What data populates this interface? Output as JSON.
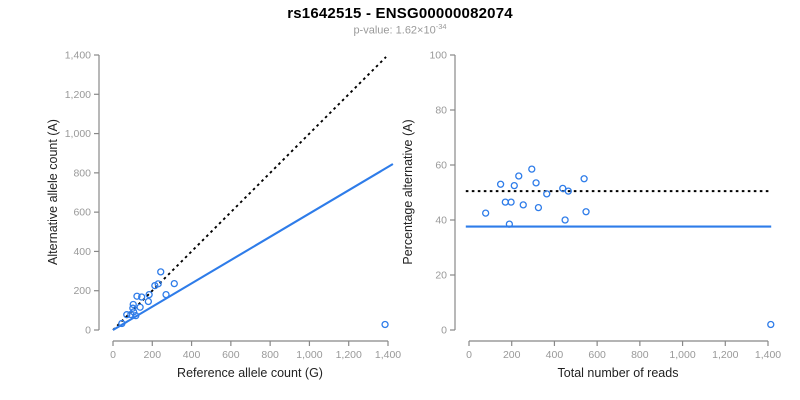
{
  "header": {
    "title": "rs1642515 - ENSG00000082074",
    "pvalue_prefix": "p-value: ",
    "pvalue_base": "1.62×10",
    "pvalue_exponent": "-34"
  },
  "colors": {
    "accent_blue": "#2E7CE9",
    "dotted_black": "#000000",
    "tick_label_gray": "#999999",
    "axis_gray": "#888888",
    "axis_title_color": "#222222",
    "subtitle_gray": "#9a9a9a"
  },
  "chart_data": [
    {
      "type": "scatter",
      "panel": "left",
      "xlabel": "Reference allele count (G)",
      "ylabel": "Alternative allele count (A)",
      "xlim": [
        0,
        1400
      ],
      "ylim": [
        0,
        1400
      ],
      "xticks": [
        0,
        200,
        400,
        600,
        800,
        1000,
        1200,
        1400
      ],
      "yticks": [
        0,
        200,
        400,
        600,
        800,
        1000,
        1200,
        1400
      ],
      "points": [
        [
          45,
          33
        ],
        [
          70,
          78
        ],
        [
          91,
          79
        ],
        [
          105,
          92
        ],
        [
          101,
          111
        ],
        [
          103,
          130
        ],
        [
          138,
          116
        ],
        [
          122,
          172
        ],
        [
          146,
          168
        ],
        [
          180,
          145
        ],
        [
          184,
          180
        ],
        [
          213,
          226
        ],
        [
          230,
          235
        ],
        [
          270,
          180
        ],
        [
          243,
          296
        ],
        [
          312,
          236
        ],
        [
          116,
          73
        ],
        [
          1385,
          28
        ]
      ],
      "lines": [
        {
          "name": "identity-line",
          "style": "dotted",
          "color": "#000000",
          "slope": 1,
          "intercept": 0,
          "x_range": [
            0,
            1390
          ]
        },
        {
          "name": "fit-line",
          "style": "solid",
          "color": "#2E7CE9",
          "slope": 0.593,
          "intercept": 0,
          "x_range": [
            0,
            1425
          ]
        }
      ]
    },
    {
      "type": "scatter",
      "panel": "right",
      "xlabel": "Total number of reads",
      "ylabel": "Percentage alternative (A)",
      "xlim": [
        0,
        1400
      ],
      "ylim": [
        0,
        100
      ],
      "xticks": [
        0,
        200,
        400,
        600,
        800,
        1000,
        1200,
        1400
      ],
      "yticks": [
        0,
        20,
        40,
        60,
        80,
        100
      ],
      "points": [
        [
          78,
          42.5
        ],
        [
          148,
          53
        ],
        [
          170,
          46.5
        ],
        [
          197,
          46.5
        ],
        [
          212,
          52.5
        ],
        [
          233,
          56
        ],
        [
          254,
          45.5
        ],
        [
          294,
          58.5
        ],
        [
          314,
          53.5
        ],
        [
          325,
          44.5
        ],
        [
          364,
          49.5
        ],
        [
          439,
          51.5
        ],
        [
          465,
          50.5
        ],
        [
          450,
          40
        ],
        [
          539,
          55
        ],
        [
          548,
          43
        ],
        [
          189,
          38.5
        ],
        [
          1413,
          2
        ]
      ],
      "lines": [
        {
          "name": "expected-50pct-line",
          "style": "dotted",
          "color": "#000000",
          "y": 50.5,
          "x_range": [
            -15,
            1415
          ]
        },
        {
          "name": "observed-ratio-line",
          "style": "solid",
          "color": "#2E7CE9",
          "y": 37.6,
          "x_range": [
            -15,
            1415
          ]
        }
      ]
    }
  ]
}
